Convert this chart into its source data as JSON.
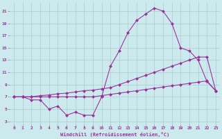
{
  "xlabel": "Windchill (Refroidissement éolien,°C)",
  "background_color": "#cceaee",
  "grid_color": "#aacccc",
  "line_color": "#993399",
  "xlim": [
    -0.5,
    23.5
  ],
  "ylim": [
    2.5,
    22.5
  ],
  "xticks": [
    0,
    1,
    2,
    3,
    4,
    5,
    6,
    7,
    8,
    9,
    10,
    11,
    12,
    13,
    14,
    15,
    16,
    17,
    18,
    19,
    20,
    21,
    22,
    23
  ],
  "yticks": [
    3,
    5,
    7,
    9,
    11,
    13,
    15,
    17,
    19,
    21
  ],
  "curve1_x": [
    0,
    1,
    2,
    3,
    4,
    5,
    6,
    7,
    8,
    9,
    10,
    11,
    12,
    13,
    14,
    15,
    16,
    17,
    18,
    19,
    20,
    21,
    22,
    23
  ],
  "curve1_y": [
    7.0,
    7.0,
    6.5,
    6.5,
    5.0,
    5.5,
    4.0,
    4.5,
    4.0,
    4.0,
    7.0,
    12.0,
    14.5,
    17.5,
    19.5,
    20.5,
    21.5,
    21.0,
    19.0,
    15.0,
    14.5,
    13.0,
    9.5,
    8.0
  ],
  "curve2_x": [
    0,
    1,
    2,
    3,
    4,
    5,
    6,
    7,
    8,
    9,
    10,
    11,
    12,
    13,
    14,
    15,
    16,
    17,
    18,
    19,
    20,
    21,
    22,
    23
  ],
  "curve2_y": [
    7.0,
    7.0,
    7.0,
    7.2,
    7.3,
    7.5,
    7.6,
    7.8,
    8.0,
    8.1,
    8.3,
    8.5,
    9.0,
    9.5,
    10.0,
    10.5,
    11.0,
    11.5,
    12.0,
    12.5,
    13.0,
    13.5,
    13.5,
    8.0
  ],
  "curve3_x": [
    0,
    1,
    2,
    3,
    4,
    5,
    6,
    7,
    8,
    9,
    10,
    11,
    12,
    13,
    14,
    15,
    16,
    17,
    18,
    19,
    20,
    21,
    22,
    23
  ],
  "curve3_y": [
    7.0,
    7.0,
    7.0,
    7.0,
    7.0,
    7.0,
    7.0,
    7.0,
    7.0,
    7.0,
    7.2,
    7.4,
    7.6,
    7.8,
    8.0,
    8.2,
    8.4,
    8.6,
    8.8,
    9.0,
    9.2,
    9.4,
    9.6,
    8.0
  ],
  "markersize": 2.5
}
